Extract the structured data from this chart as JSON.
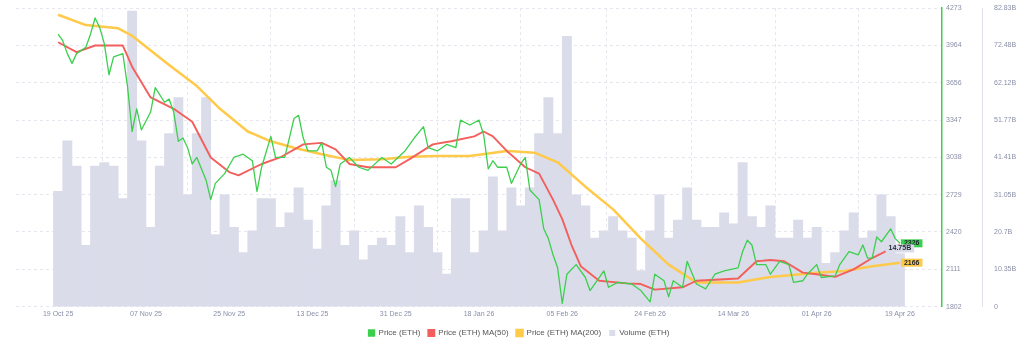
{
  "chart_data": {
    "type": "line",
    "xlim": [
      "2025-10-19",
      "2026-04-19"
    ],
    "xticks": [
      {
        "value": "2025-10-19",
        "label": "19 Oct 25"
      },
      {
        "value": "2025-11-07",
        "label": "07 Nov 25"
      },
      {
        "value": "2025-11-25",
        "label": "25 Nov 25"
      },
      {
        "value": "2025-12-13",
        "label": "13 Dec 25"
      },
      {
        "value": "2025-12-31",
        "label": "31 Dec 25"
      },
      {
        "value": "2026-01-18",
        "label": "18 Jan 26"
      },
      {
        "value": "2026-02-05",
        "label": "05 Feb 26"
      },
      {
        "value": "2026-02-24",
        "label": "24 Feb 26"
      },
      {
        "value": "2026-03-14",
        "label": "14 Mar 26"
      },
      {
        "value": "2026-04-01",
        "label": "01 Apr 26"
      },
      {
        "value": "2026-04-19",
        "label": "19 Apr 26"
      }
    ],
    "ylim": [
      1802,
      4273
    ],
    "yticks": [
      1802,
      2111,
      2420,
      2729,
      3038,
      3347,
      3656,
      3964,
      4273
    ],
    "y2lim": [
      0,
      82.83
    ],
    "y2ticks": [
      0,
      {
        "value": 10.35,
        "label": "10.35B"
      },
      {
        "value": 20.7,
        "label": "20.7B"
      },
      {
        "value": 31.05,
        "label": "31.05B"
      },
      {
        "value": 41.41,
        "label": "41.41B"
      },
      {
        "value": 51.77,
        "label": "51.77B"
      },
      {
        "value": 62.12,
        "label": "62.12B"
      },
      {
        "value": 72.48,
        "label": "72.48B"
      },
      {
        "value": 82.83,
        "label": "82.83B"
      }
    ],
    "grid": true,
    "legend": "bottom",
    "marker": "none",
    "line_style": "solid",
    "series": [
      {
        "name": "Price (ETH)",
        "color": "#3ccf4e",
        "x": [
          "2025-10-19",
          "2025-10-20",
          "2025-10-21",
          "2025-10-22",
          "2025-10-23",
          "2025-10-25",
          "2025-10-26",
          "2025-10-27",
          "2025-10-28",
          "2025-10-29",
          "2025-10-30",
          "2025-10-31",
          "2025-11-02",
          "2025-11-03",
          "2025-11-04",
          "2025-11-05",
          "2025-11-06",
          "2025-11-08",
          "2025-11-09",
          "2025-11-11",
          "2025-11-12",
          "2025-11-13",
          "2025-11-14",
          "2025-11-15",
          "2025-11-16",
          "2025-11-17",
          "2025-11-18",
          "2025-11-20",
          "2025-11-21",
          "2025-11-22",
          "2025-11-24",
          "2025-11-26",
          "2025-11-28",
          "2025-11-30",
          "2025-12-01",
          "2025-12-02",
          "2025-12-04",
          "2025-12-05",
          "2025-12-07",
          "2025-12-09",
          "2025-12-10",
          "2025-12-11",
          "2025-12-12",
          "2025-12-14",
          "2025-12-15",
          "2025-12-16",
          "2025-12-17",
          "2025-12-18",
          "2025-12-19",
          "2025-12-21",
          "2025-12-23",
          "2025-12-25",
          "2025-12-28",
          "2025-12-30",
          "2026-01-02",
          "2026-01-04",
          "2026-01-06",
          "2026-01-07",
          "2026-01-09",
          "2026-01-11",
          "2026-01-13",
          "2026-01-14",
          "2026-01-16",
          "2026-01-18",
          "2026-01-19",
          "2026-01-20",
          "2026-01-21",
          "2026-01-22",
          "2026-01-24",
          "2026-01-25",
          "2026-01-27",
          "2026-01-28",
          "2026-01-29",
          "2026-01-31",
          "2026-02-01",
          "2026-02-02",
          "2026-02-03",
          "2026-02-04",
          "2026-02-05",
          "2026-02-06",
          "2026-02-08",
          "2026-02-10",
          "2026-02-11",
          "2026-02-12",
          "2026-02-14",
          "2026-02-15",
          "2026-02-17",
          "2026-02-20",
          "2026-02-22",
          "2026-02-24",
          "2026-02-25",
          "2026-02-27",
          "2026-02-28",
          "2026-03-01",
          "2026-03-03",
          "2026-03-04",
          "2026-03-06",
          "2026-03-08",
          "2026-03-10",
          "2026-03-12",
          "2026-03-15",
          "2026-03-16",
          "2026-03-17",
          "2026-03-18",
          "2026-03-19",
          "2026-03-21",
          "2026-03-22",
          "2026-03-24",
          "2026-03-26",
          "2026-03-27",
          "2026-03-29",
          "2026-03-30",
          "2026-04-01",
          "2026-04-02",
          "2026-04-05",
          "2026-04-06",
          "2026-04-08",
          "2026-04-10",
          "2026-04-11",
          "2026-04-12",
          "2026-04-13",
          "2026-04-14",
          "2026-04-15",
          "2026-04-17",
          "2026-04-18",
          "2026-04-19"
        ],
        "values": [
          4058,
          4004,
          3897,
          3816,
          3897,
          3950,
          4058,
          4192,
          4112,
          3977,
          3722,
          3870,
          3897,
          3628,
          3252,
          3440,
          3265,
          3413,
          3615,
          3494,
          3521,
          3413,
          3171,
          3198,
          3118,
          2983,
          3037,
          2849,
          2688,
          2822,
          2903,
          3037,
          3064,
          3010,
          2755,
          2956,
          3212,
          3037,
          3037,
          3359,
          3386,
          3198,
          3091,
          3091,
          3158,
          2956,
          2930,
          2795,
          2983,
          3037,
          2956,
          2930,
          3037,
          2983,
          3091,
          3198,
          3292,
          3118,
          3091,
          3145,
          3118,
          3346,
          3306,
          3346,
          3225,
          2943,
          3010,
          2956,
          2956,
          2822,
          2983,
          3037,
          2768,
          2688,
          2446,
          2365,
          2231,
          2123,
          1828,
          2070,
          2150,
          2043,
          1935,
          1989,
          2097,
          1962,
          2002,
          1989,
          1935,
          1841,
          2070,
          2016,
          1882,
          2016,
          1962,
          2177,
          1989,
          1949,
          2070,
          2097,
          2123,
          2258,
          2352,
          2312,
          2150,
          2150,
          2070,
          2177,
          2150,
          2002,
          2016,
          2070,
          2150,
          2043,
          2056,
          2150,
          2258,
          2231,
          2312,
          2204,
          2204,
          2379,
          2339,
          2446,
          2365,
          2326
        ],
        "value_labels": [
          null,
          null,
          null,
          null,
          null,
          null,
          null,
          null,
          null,
          null,
          null,
          null,
          null,
          null,
          null,
          null,
          null,
          null,
          null,
          null,
          null,
          null,
          null,
          null,
          null,
          null,
          null,
          null,
          null,
          null,
          null,
          null,
          null,
          null,
          null,
          null,
          null,
          null,
          null,
          null,
          null,
          null,
          null,
          null,
          null,
          null,
          null,
          null,
          null,
          null,
          null,
          null,
          null,
          null,
          null,
          null,
          null,
          null,
          null,
          null,
          null,
          null,
          null,
          null,
          null,
          null,
          null,
          null,
          null,
          null,
          null,
          null,
          null,
          null,
          null,
          null,
          null,
          null,
          null,
          null,
          null,
          null,
          null,
          null,
          null,
          null,
          null,
          null,
          null,
          null,
          null,
          null,
          null,
          null,
          null,
          null,
          null,
          null,
          null,
          null,
          null,
          null,
          null,
          null,
          null,
          null,
          null,
          null,
          null,
          null,
          null,
          null,
          null,
          null,
          null,
          null,
          null,
          null,
          null,
          null,
          null,
          null,
          null,
          null,
          null,
          "2326"
        ]
      },
      {
        "name": "Price (ETH) MA(50)",
        "color": "#f25f5c",
        "x": [
          "2025-10-19",
          "2025-10-23",
          "2025-10-27",
          "2025-11-02",
          "2025-11-04",
          "2025-11-08",
          "2025-11-13",
          "2025-11-17",
          "2025-11-21",
          "2025-11-25",
          "2025-11-27",
          "2025-12-02",
          "2025-12-06",
          "2025-12-11",
          "2025-12-15",
          "2025-12-18",
          "2025-12-21",
          "2025-12-25",
          "2025-12-31",
          "2026-01-03",
          "2026-01-08",
          "2026-01-12",
          "2026-01-17",
          "2026-01-19",
          "2026-01-21",
          "2026-01-24",
          "2026-01-28",
          "2026-01-31",
          "2026-02-03",
          "2026-02-05",
          "2026-02-07",
          "2026-02-09",
          "2026-02-13",
          "2026-02-19",
          "2026-02-22",
          "2026-02-25",
          "2026-03-03",
          "2026-03-06",
          "2026-03-15",
          "2026-03-19",
          "2026-03-22",
          "2026-03-25",
          "2026-03-29",
          "2026-04-01",
          "2026-04-05",
          "2026-04-09",
          "2026-04-13",
          "2026-04-19"
        ],
        "values": [
          3991,
          3910,
          3964,
          3964,
          3789,
          3534,
          3440,
          3333,
          3037,
          2916,
          2889,
          2983,
          3037,
          3145,
          3158,
          3104,
          2983,
          2956,
          2956,
          3023,
          3145,
          3171,
          3212,
          3252,
          3212,
          3091,
          2956,
          2903,
          2688,
          2526,
          2312,
          2137,
          2016,
          1994,
          1989,
          1943,
          1962,
          2016,
          2035,
          2177,
          2188,
          2177,
          2083,
          2070,
          2048,
          2110,
          2204,
          2317
        ]
      },
      {
        "name": "Price (ETH) MA(200)",
        "color": "#ffc94a",
        "x": [
          "2025-10-19",
          "2025-10-25",
          "2025-11-01",
          "2025-11-04",
          "2025-11-12",
          "2025-11-18",
          "2025-11-23",
          "2025-11-29",
          "2025-12-04",
          "2025-12-09",
          "2025-12-15",
          "2025-12-21",
          "2025-12-28",
          "2026-01-03",
          "2026-01-09",
          "2026-01-16",
          "2026-01-24",
          "2026-01-30",
          "2026-02-04",
          "2026-02-10",
          "2026-02-16",
          "2026-02-22",
          "2026-02-28",
          "2026-03-06",
          "2026-03-15",
          "2026-03-22",
          "2026-04-01",
          "2026-04-07",
          "2026-04-13",
          "2026-04-19"
        ],
        "values": [
          4219,
          4133,
          4106,
          4045,
          3803,
          3628,
          3440,
          3252,
          3171,
          3118,
          3064,
          3015,
          3023,
          3042,
          3050,
          3050,
          3091,
          3077,
          2997,
          2795,
          2607,
          2365,
          2150,
          2002,
          2002,
          2048,
          2083,
          2097,
          2137,
          2166
        ],
        "value_labels": [
          null,
          null,
          null,
          null,
          null,
          null,
          null,
          null,
          null,
          null,
          null,
          null,
          null,
          null,
          null,
          null,
          null,
          null,
          null,
          null,
          null,
          null,
          null,
          null,
          null,
          null,
          null,
          null,
          null,
          "2166"
        ]
      },
      {
        "name": "Volume (ETH)",
        "color": "#dadcea",
        "type": "bar",
        "axis": "y2",
        "x": [
          "2025-10-19",
          "2025-10-21",
          "2025-10-23",
          "2025-10-25",
          "2025-10-27",
          "2025-10-29",
          "2025-10-31",
          "2025-11-02",
          "2025-11-04",
          "2025-11-06",
          "2025-11-08",
          "2025-11-10",
          "2025-11-12",
          "2025-11-14",
          "2025-11-16",
          "2025-11-18",
          "2025-11-20",
          "2025-11-22",
          "2025-11-24",
          "2025-11-26",
          "2025-11-28",
          "2025-11-30",
          "2025-12-02",
          "2025-12-04",
          "2025-12-06",
          "2025-12-08",
          "2025-12-10",
          "2025-12-12",
          "2025-12-14",
          "2025-12-16",
          "2025-12-18",
          "2025-12-20",
          "2025-12-22",
          "2025-12-24",
          "2025-12-26",
          "2025-12-28",
          "2025-12-30",
          "2026-01-01",
          "2026-01-03",
          "2026-01-05",
          "2026-01-07",
          "2026-01-09",
          "2026-01-11",
          "2026-01-13",
          "2026-01-15",
          "2026-01-17",
          "2026-01-19",
          "2026-01-21",
          "2026-01-23",
          "2026-01-25",
          "2026-01-27",
          "2026-01-29",
          "2026-01-31",
          "2026-02-02",
          "2026-02-04",
          "2026-02-06",
          "2026-02-08",
          "2026-02-10",
          "2026-02-12",
          "2026-02-14",
          "2026-02-16",
          "2026-02-18",
          "2026-02-20",
          "2026-02-22",
          "2026-02-24",
          "2026-02-26",
          "2026-02-28",
          "2026-03-02",
          "2026-03-04",
          "2026-03-06",
          "2026-03-08",
          "2026-03-10",
          "2026-03-12",
          "2026-03-14",
          "2026-03-16",
          "2026-03-18",
          "2026-03-20",
          "2026-03-22",
          "2026-03-24",
          "2026-03-26",
          "2026-03-28",
          "2026-03-30",
          "2026-04-01",
          "2026-04-03",
          "2026-04-05",
          "2026-04-07",
          "2026-04-09",
          "2026-04-11",
          "2026-04-13",
          "2026-04-15",
          "2026-04-17",
          "2026-04-19"
        ],
        "values": [
          32,
          46,
          39,
          17,
          39,
          40,
          39,
          30,
          82,
          46,
          22,
          39,
          48,
          58,
          31,
          48,
          58,
          20,
          31,
          22,
          15,
          21,
          30,
          30,
          22,
          26,
          33,
          24,
          16,
          28,
          35,
          17,
          21,
          13,
          17,
          19,
          17,
          25,
          15,
          28,
          22,
          15,
          9,
          30,
          30,
          15,
          21,
          36,
          21,
          33,
          28,
          33,
          48,
          58,
          48,
          75,
          31,
          28,
          19,
          21,
          25,
          21,
          19,
          10,
          21,
          31,
          19,
          24,
          33,
          24,
          22,
          22,
          26,
          23,
          40,
          25,
          22,
          28,
          19,
          19,
          24,
          19,
          22,
          12,
          15,
          21,
          26,
          19,
          21,
          31,
          25,
          14.75
        ],
        "value_labels": [
          null,
          null,
          null,
          null,
          null,
          null,
          null,
          null,
          null,
          null,
          null,
          null,
          null,
          null,
          null,
          null,
          null,
          null,
          null,
          null,
          null,
          null,
          null,
          null,
          null,
          null,
          null,
          null,
          null,
          null,
          null,
          null,
          null,
          null,
          null,
          null,
          null,
          null,
          null,
          null,
          null,
          null,
          null,
          null,
          null,
          null,
          null,
          null,
          null,
          null,
          null,
          null,
          null,
          null,
          null,
          null,
          null,
          null,
          null,
          null,
          null,
          null,
          null,
          null,
          null,
          null,
          null,
          null,
          null,
          null,
          null,
          null,
          null,
          null,
          null,
          null,
          null,
          null,
          null,
          null,
          null,
          null,
          null,
          null,
          null,
          null,
          null,
          null,
          null,
          null,
          null,
          "14.75B"
        ]
      }
    ]
  }
}
